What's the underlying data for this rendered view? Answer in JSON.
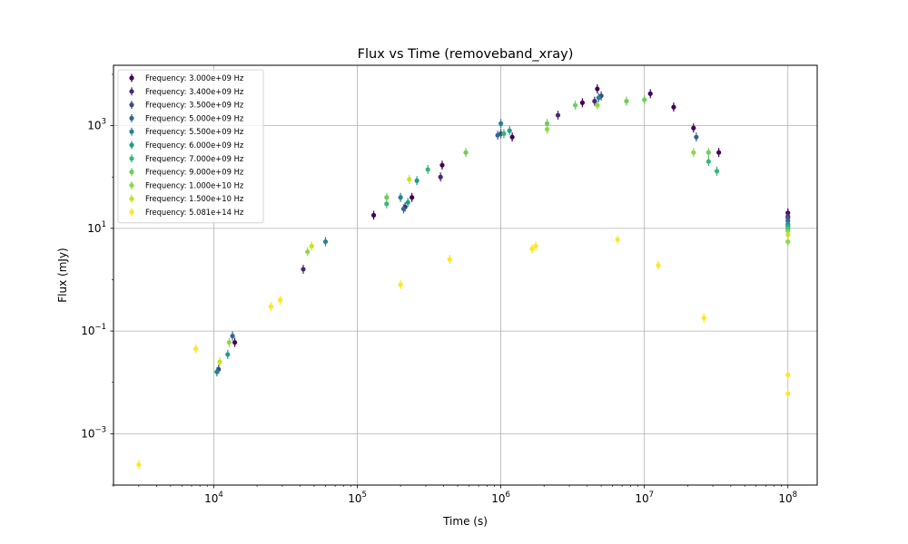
{
  "chart_data": {
    "type": "scatter",
    "title": "Flux vs Time (removeband_xray)",
    "xlabel": "Time (s)",
    "ylabel": "Flux (mJy)",
    "xscale": "log",
    "yscale": "log",
    "xlim": [
      2000,
      160000000
    ],
    "ylim": [
      0.0001,
      15000
    ],
    "grid": true,
    "legend_position": "top-left",
    "x_ticks": [
      {
        "value": 10000,
        "base": "10",
        "exp": "4"
      },
      {
        "value": 100000,
        "base": "10",
        "exp": "5"
      },
      {
        "value": 1000000,
        "base": "10",
        "exp": "6"
      },
      {
        "value": 10000000,
        "base": "10",
        "exp": "7"
      },
      {
        "value": 100000000,
        "base": "10",
        "exp": "8"
      }
    ],
    "y_ticks": [
      {
        "value": 0.001,
        "base": "10",
        "exp": "−3"
      },
      {
        "value": 0.1,
        "base": "10",
        "exp": "−1"
      },
      {
        "value": 10,
        "base": "10",
        "exp": "1"
      },
      {
        "value": 1000,
        "base": "10",
        "exp": "3"
      }
    ],
    "series": [
      {
        "name": "Frequency: 3.000e+09 Hz",
        "color": "#440154",
        "points": [
          [
            14000,
            0.06
          ],
          [
            130000,
            18
          ],
          [
            240000,
            40
          ],
          [
            390000,
            170
          ],
          [
            1200000,
            600
          ],
          [
            3700000,
            2800
          ],
          [
            4700000,
            5200
          ],
          [
            11000000,
            4200
          ],
          [
            16000000,
            2300
          ],
          [
            22000000,
            900
          ],
          [
            33000000,
            300
          ],
          [
            100000000,
            20
          ]
        ]
      },
      {
        "name": "Frequency: 3.400e+09 Hz",
        "color": "#482878",
        "points": [
          [
            42000,
            1.6
          ],
          [
            215000,
            26
          ],
          [
            380000,
            100
          ],
          [
            2500000,
            1600
          ],
          [
            4500000,
            3000
          ],
          [
            100000000,
            17
          ]
        ]
      },
      {
        "name": "Frequency: 3.500e+09 Hz",
        "color": "#3e4a89",
        "points": [
          [
            10800,
            0.018
          ],
          [
            1000000,
            700
          ],
          [
            5000000,
            3800
          ],
          [
            100000000,
            16
          ]
        ]
      },
      {
        "name": "Frequency: 5.000e+09 Hz",
        "color": "#31688e",
        "points": [
          [
            13500,
            0.08
          ],
          [
            210000,
            24
          ],
          [
            950000,
            650
          ],
          [
            23000000,
            600
          ],
          [
            100000000,
            14
          ]
        ]
      },
      {
        "name": "Frequency: 5.500e+09 Hz",
        "color": "#26828e",
        "points": [
          [
            10500,
            0.016
          ],
          [
            60000,
            5.5
          ],
          [
            200000,
            40
          ],
          [
            1000000,
            1100
          ],
          [
            4800000,
            3500
          ],
          [
            100000000,
            12
          ]
        ]
      },
      {
        "name": "Frequency: 6.000e+09 Hz",
        "color": "#1f9e89",
        "points": [
          [
            12500,
            0.035
          ],
          [
            225000,
            32
          ],
          [
            260000,
            85
          ],
          [
            1150000,
            800
          ],
          [
            100000000,
            11
          ]
        ]
      },
      {
        "name": "Frequency: 7.000e+09 Hz",
        "color": "#35b779",
        "points": [
          [
            160000,
            30
          ],
          [
            310000,
            140
          ],
          [
            1050000,
            700
          ],
          [
            28000000,
            200
          ],
          [
            32000000,
            130
          ],
          [
            100000000,
            10
          ]
        ]
      },
      {
        "name": "Frequency: 9.000e+09 Hz",
        "color": "#6ece58",
        "points": [
          [
            160000,
            40
          ],
          [
            570000,
            300
          ],
          [
            2100000,
            1100
          ],
          [
            3300000,
            2500
          ],
          [
            7500000,
            3000
          ],
          [
            10000000,
            3200
          ],
          [
            28000000,
            300
          ],
          [
            100000000,
            9
          ]
        ]
      },
      {
        "name": "Frequency: 1.000e+10 Hz",
        "color": "#8fd744",
        "points": [
          [
            12800,
            0.06
          ],
          [
            45000,
            3.5
          ],
          [
            2100000,
            850
          ],
          [
            4700000,
            2500
          ],
          [
            22000000,
            300
          ],
          [
            100000000,
            5.5
          ]
        ]
      },
      {
        "name": "Frequency: 1.500e+10 Hz",
        "color": "#c9e120",
        "points": [
          [
            11000,
            0.025
          ],
          [
            48000,
            4.5
          ],
          [
            230000,
            90
          ],
          [
            100000000,
            7.5
          ]
        ]
      },
      {
        "name": "Frequency: 5.081e+14 Hz",
        "color": "#fde725",
        "points": [
          [
            3000,
            0.00025
          ],
          [
            7500,
            0.045
          ],
          [
            25000,
            0.3
          ],
          [
            29000,
            0.4
          ],
          [
            200000,
            0.8
          ],
          [
            440000,
            2.5
          ],
          [
            1650000,
            4
          ],
          [
            1750000,
            4.5
          ],
          [
            6500000,
            6
          ],
          [
            12500000,
            1.9
          ],
          [
            26000000,
            0.18
          ],
          [
            100000000,
            0.014
          ],
          [
            100000000,
            0.006
          ]
        ]
      }
    ]
  }
}
